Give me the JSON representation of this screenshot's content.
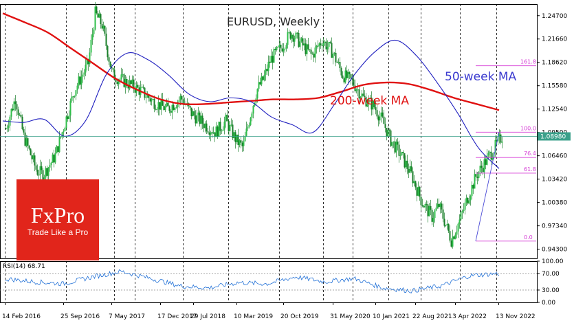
{
  "chart_data": [
    {
      "type": "candlestick",
      "title": "EURUSD, Weekly",
      "timeframe": "Weekly",
      "symbol": "EURUSD",
      "y_ticks": [
        "1.24700",
        "1.21660",
        "1.18620",
        "1.15580",
        "1.12540",
        "1.09500",
        "1.06460",
        "1.03420",
        "1.00380",
        "0.97340",
        "0.94300"
      ],
      "y_tick_values": [
        1.247,
        1.2166,
        1.1862,
        1.1558,
        1.1254,
        1.095,
        1.0646,
        1.0342,
        1.0038,
        0.9734,
        0.943
      ],
      "ylim": [
        0.931,
        1.262
      ],
      "x_ticks": [
        "14 Feb 2016",
        "25 Sep 2016",
        "7 May 2017",
        "17 Dec 2017",
        "29 Jul 2018",
        "10 Mar 2019",
        "20 Oct 2019",
        "31 May 2020",
        "10 Jan 2021",
        "22 Aug 2021",
        "3 Apr 2022",
        "13 Nov 2022"
      ],
      "current_price": "1.08980",
      "price_key_points": [
        {
          "date": "14 Feb 2016",
          "close": 1.1
        },
        {
          "date": "Jan 2017",
          "low": 1.035
        },
        {
          "date": "Feb 2018",
          "high": 1.255
        },
        {
          "date": "Sep 2019",
          "low": 1.083
        },
        {
          "date": "Mar 2020",
          "low": 1.064
        },
        {
          "date": "Jan 2021",
          "high": 1.235
        },
        {
          "date": "Sep 2022",
          "low": 0.953
        },
        {
          "date": "Jan 2023",
          "close": 1.0898
        }
      ],
      "series": [
        {
          "name": "50-week MA",
          "color": "#1f1fbf",
          "key_values": [
            1.11,
            1.09,
            1.2,
            1.14,
            1.11,
            1.23,
            1.16,
            1.04
          ]
        },
        {
          "name": "200-week MA",
          "color": "#e01010",
          "key_values": [
            1.24,
            1.2,
            1.15,
            1.13,
            1.14,
            1.15,
            1.14,
            1.12
          ]
        }
      ],
      "annotations": {
        "ma50_label": "50-week MA",
        "ma200_label": "200-week MA"
      },
      "fibonacci": {
        "color": "#d63fd6",
        "levels": [
          {
            "label": "161.8",
            "value": 1.1818
          },
          {
            "label": "100.0",
            "value": 1.0953
          },
          {
            "label": "76.4",
            "value": 1.0623
          },
          {
            "label": "61.8",
            "value": 1.042
          },
          {
            "label": "0.0",
            "value": 0.9535
          }
        ]
      }
    },
    {
      "type": "line",
      "title": "RSI(14) 68.71",
      "indicator": "RSI(14)",
      "last_value": "68.71",
      "y_ticks": [
        "100.00",
        "70.00",
        "30.00",
        "0.00"
      ],
      "y_tick_values": [
        100,
        70,
        30,
        0
      ],
      "ylim": [
        0,
        100
      ],
      "levels": [
        70,
        30
      ],
      "series": [
        {
          "color": "#1f6fd6",
          "key_values": [
            57,
            50,
            45,
            62,
            75,
            58,
            40,
            35,
            48,
            45,
            62,
            50,
            58,
            35,
            28,
            40,
            65,
            70
          ]
        }
      ]
    }
  ],
  "branding": {
    "logo_text": "FxPro",
    "tagline": "Trade Like a Pro",
    "logo_color": "#e1251b"
  }
}
